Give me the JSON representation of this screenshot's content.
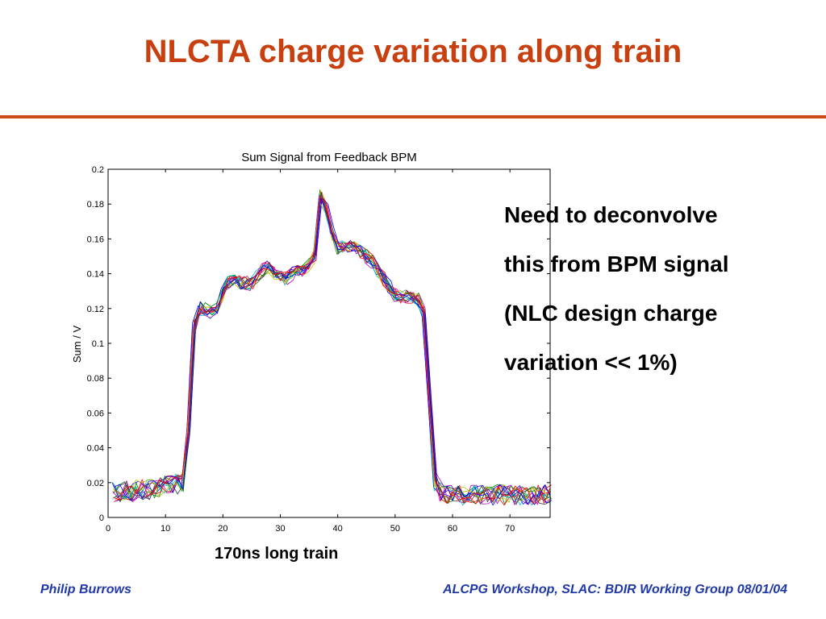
{
  "slide": {
    "title": "NLCTA charge variation along train",
    "side_note": [
      "Need to deconvolve",
      "this from BPM signal",
      "(NLC design charge",
      "variation << 1%)"
    ],
    "caption": "170ns long train",
    "footer_left": "Philip Burrows",
    "footer_right": "ALCPG Workshop, SLAC: BDIR Working Group 08/01/04",
    "colors": {
      "title": "#c8400f",
      "rule": "#cc4a1a",
      "footer": "#1f38a6"
    }
  },
  "chart_data": {
    "type": "line",
    "title": "Sum Signal from Feedback BPM",
    "xlabel": "",
    "ylabel": "Sum / V",
    "xlim": [
      0,
      77
    ],
    "ylim": [
      0,
      0.2
    ],
    "x_ticks": [
      "0",
      "10",
      "20",
      "30",
      "40",
      "50",
      "60",
      "70"
    ],
    "y_ticks": [
      "0",
      "0.02",
      "0.04",
      "0.06",
      "0.08",
      "0.1",
      "0.12",
      "0.14",
      "0.16",
      "0.18",
      "0.2"
    ],
    "grid": false,
    "legend": "none",
    "series_count": 16,
    "series_colors": [
      "#0000ff",
      "#008000",
      "#ff0000",
      "#00bfbf",
      "#bf00bf",
      "#bfbf00",
      "#404040",
      "#0000ff",
      "#008000",
      "#ff0000",
      "#00bfbf",
      "#bf00bf",
      "#bfbf00",
      "#404040",
      "#0000ff",
      "#ff0000"
    ],
    "mean_profile": [
      [
        1,
        0.015
      ],
      [
        2,
        0.015
      ],
      [
        3,
        0.016
      ],
      [
        4,
        0.015
      ],
      [
        5,
        0.016
      ],
      [
        6,
        0.016
      ],
      [
        7,
        0.016
      ],
      [
        8,
        0.017
      ],
      [
        9,
        0.017
      ],
      [
        10,
        0.018
      ],
      [
        11,
        0.018
      ],
      [
        12,
        0.019
      ],
      [
        13,
        0.02
      ],
      [
        14,
        0.05
      ],
      [
        15,
        0.11
      ],
      [
        16,
        0.12
      ],
      [
        17,
        0.12
      ],
      [
        18,
        0.118
      ],
      [
        19,
        0.12
      ],
      [
        20,
        0.128
      ],
      [
        21,
        0.135
      ],
      [
        22,
        0.137
      ],
      [
        23,
        0.135
      ],
      [
        24,
        0.135
      ],
      [
        25,
        0.134
      ],
      [
        26,
        0.138
      ],
      [
        27,
        0.142
      ],
      [
        28,
        0.144
      ],
      [
        29,
        0.14
      ],
      [
        30,
        0.138
      ],
      [
        31,
        0.137
      ],
      [
        32,
        0.14
      ],
      [
        33,
        0.143
      ],
      [
        34,
        0.142
      ],
      [
        35,
        0.145
      ],
      [
        36,
        0.15
      ],
      [
        37,
        0.185
      ],
      [
        38,
        0.178
      ],
      [
        39,
        0.163
      ],
      [
        40,
        0.155
      ],
      [
        41,
        0.155
      ],
      [
        42,
        0.156
      ],
      [
        43,
        0.155
      ],
      [
        44,
        0.153
      ],
      [
        45,
        0.15
      ],
      [
        46,
        0.147
      ],
      [
        47,
        0.142
      ],
      [
        48,
        0.137
      ],
      [
        49,
        0.133
      ],
      [
        50,
        0.128
      ],
      [
        51,
        0.127
      ],
      [
        52,
        0.127
      ],
      [
        53,
        0.126
      ],
      [
        54,
        0.125
      ],
      [
        55,
        0.118
      ],
      [
        56,
        0.07
      ],
      [
        57,
        0.02
      ],
      [
        58,
        0.015
      ],
      [
        59,
        0.014
      ],
      [
        60,
        0.014
      ],
      [
        61,
        0.013
      ],
      [
        62,
        0.013
      ],
      [
        63,
        0.013
      ],
      [
        64,
        0.013
      ],
      [
        65,
        0.013
      ],
      [
        66,
        0.013
      ],
      [
        67,
        0.013
      ],
      [
        68,
        0.013
      ],
      [
        69,
        0.013
      ],
      [
        70,
        0.013
      ],
      [
        71,
        0.013
      ],
      [
        72,
        0.013
      ],
      [
        73,
        0.013
      ],
      [
        74,
        0.013
      ],
      [
        75,
        0.013
      ],
      [
        76,
        0.013
      ],
      [
        77,
        0.013
      ]
    ]
  }
}
